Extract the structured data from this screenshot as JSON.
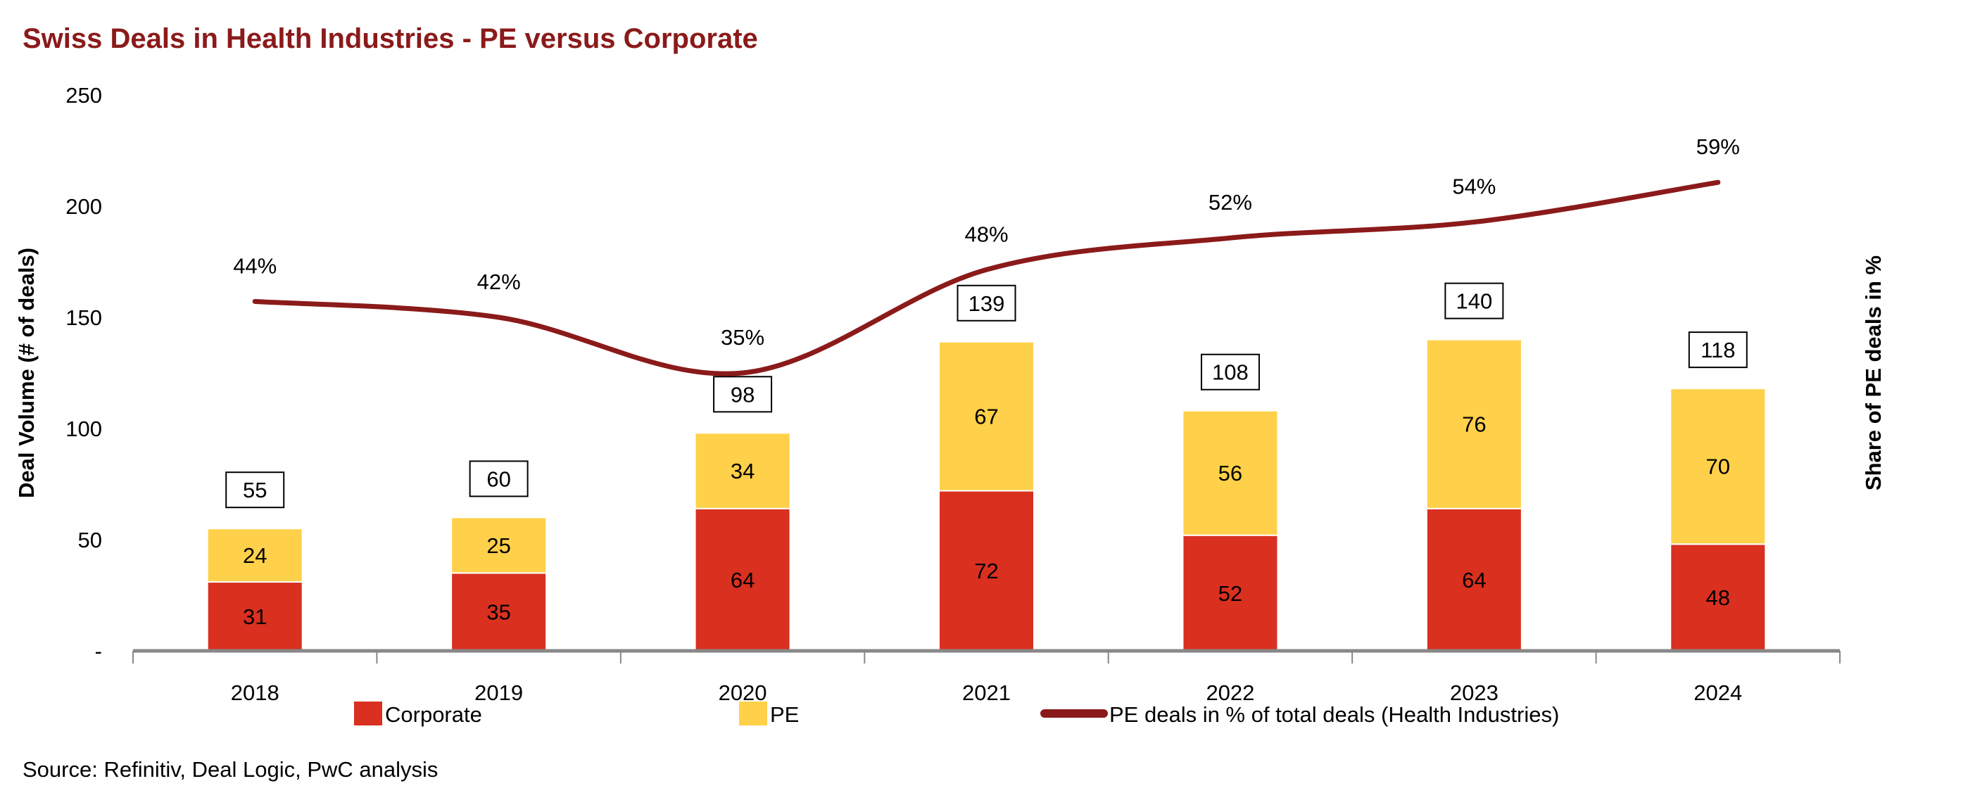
{
  "chart_data": {
    "type": "bar",
    "stacked": true,
    "title": "Swiss Deals in Health Industries - PE versus Corporate",
    "ylabel": "Deal Volume (# of deals)",
    "y2label": "Share of PE deals in %",
    "ylim": [
      0,
      250
    ],
    "y2lim": [
      0,
      0.7
    ],
    "yticks": [
      0,
      50,
      100,
      150,
      200,
      250
    ],
    "ytick_labels": [
      "-",
      "50",
      "100",
      "150",
      "200",
      "250"
    ],
    "grid": false,
    "legend_placement": "bottom",
    "categories": [
      "2018",
      "2019",
      "2020",
      "2021",
      "2022",
      "2023",
      "2024"
    ],
    "series": [
      {
        "name": "Corporate",
        "kind": "bar",
        "color": "#D93020",
        "values": [
          31,
          35,
          64,
          72,
          52,
          64,
          48
        ]
      },
      {
        "name": "PE",
        "kind": "bar",
        "color": "#FFD04A",
        "values": [
          24,
          25,
          34,
          67,
          56,
          76,
          70
        ]
      },
      {
        "name": "PE deals in % of total deals (Health Industries)",
        "kind": "line",
        "axis": "right",
        "color": "#8B1A1A",
        "values": [
          0.44,
          0.42,
          0.35,
          0.48,
          0.52,
          0.54,
          0.59
        ],
        "labels": [
          "44%",
          "42%",
          "35%",
          "48%",
          "52%",
          "54%",
          "59%"
        ]
      }
    ],
    "totals": [
      55,
      60,
      98,
      139,
      108,
      140,
      118
    ]
  },
  "source": "Source: Refinitiv, Deal Logic, PwC analysis",
  "colors": {
    "title": "#8B1A1A",
    "axis": "#888888"
  }
}
